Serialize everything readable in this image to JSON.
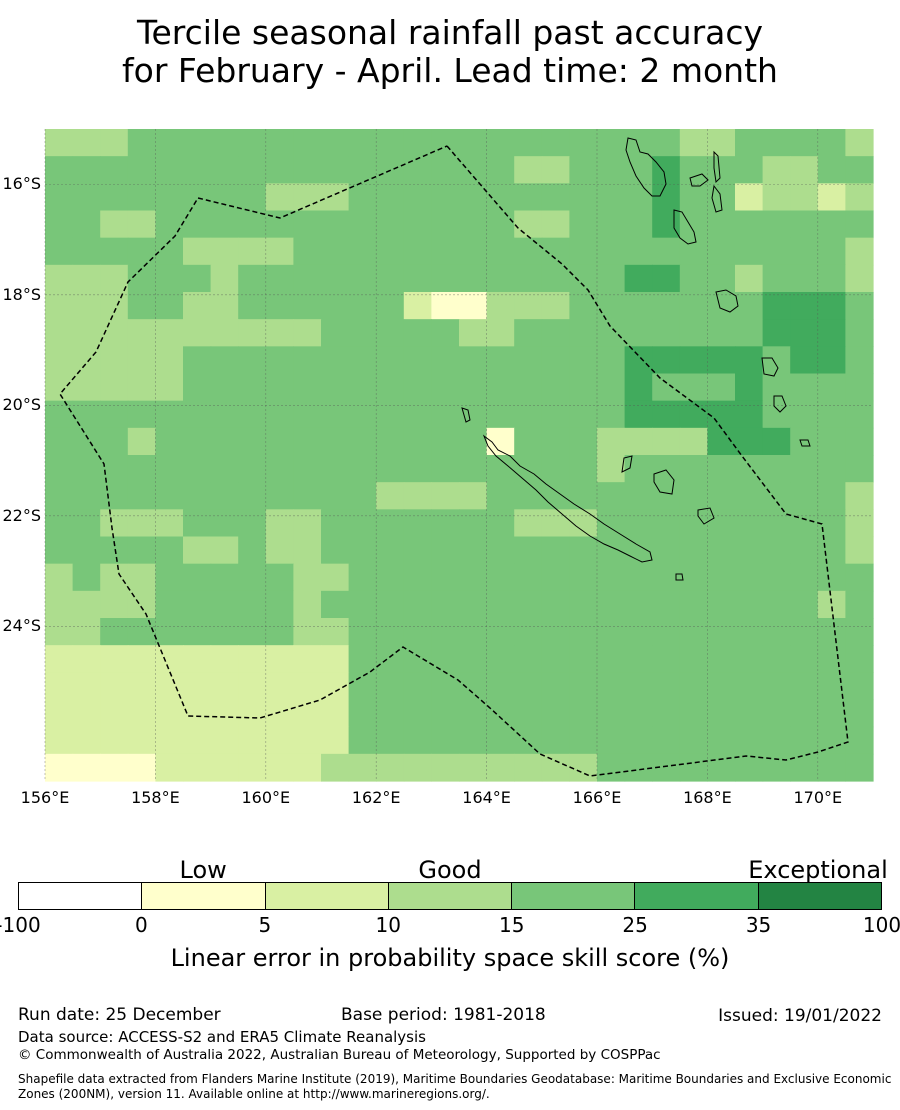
{
  "title": {
    "line1": "Tercile seasonal rainfall past accuracy",
    "line2": "for February - April. Lead time: 2 month"
  },
  "map": {
    "lon_range": [
      156,
      171
    ],
    "lat_range": [
      -26.8,
      -15.0
    ],
    "lat_ticks": [
      {
        "value": -16,
        "label": "16°S"
      },
      {
        "value": -18,
        "label": "18°S"
      },
      {
        "value": -20,
        "label": "20°S"
      },
      {
        "value": -22,
        "label": "22°S"
      },
      {
        "value": -24,
        "label": "24°S"
      }
    ],
    "lon_ticks": [
      {
        "value": 156,
        "label": "156°E"
      },
      {
        "value": 158,
        "label": "158°E"
      },
      {
        "value": 160,
        "label": "160°E"
      },
      {
        "value": 162,
        "label": "162°E"
      },
      {
        "value": 164,
        "label": "164°E"
      },
      {
        "value": 166,
        "label": "166°E"
      },
      {
        "value": 168,
        "label": "168°E"
      },
      {
        "value": 170,
        "label": "170°E"
      }
    ],
    "grid_rows": [
      "333444444444444444444443344443",
      "444444444444444443344454443344",
      "444444443334444444444454423323",
      "443344444444444443344454444444",
      "444443333444444444444444444443",
      "333444344444444444444554434443",
      "333443344444421133344444445554",
      "333333333344444334444444445554",
      "333334444444444444444555554554",
      "333334444444444444444544454444",
      "444444444444444444444555554444",
      "444344444444444414443333555444",
      "444444444444444444443444444444",
      "444444444444333344444444444443",
      "443334443344444443334444444443",
      "444443343344444444444444444443",
      "343344444334444444444444444444",
      "333344444344444444444444444434",
      "334444444334444444444444444444",
      "222222222224444444444444444444",
      "222222222224444444444444444444",
      "222222222224444444444444444444",
      "222222222224444444444444444444",
      "111122222233333333334444444444"
    ]
  },
  "colorbar": {
    "title": "Linear error in probability space skill score (%)",
    "categories": [
      {
        "label": "Low",
        "position": 1.5
      },
      {
        "label": "Good",
        "position": 3.5
      },
      {
        "label": "Exceptional",
        "position": 6.5
      }
    ],
    "bins": [
      {
        "range": [
          -100,
          0
        ],
        "color": "#ffffff"
      },
      {
        "range": [
          0,
          5
        ],
        "color": "#ffffcc"
      },
      {
        "range": [
          5,
          10
        ],
        "color": "#d9f0a3"
      },
      {
        "range": [
          10,
          15
        ],
        "color": "#addd8e"
      },
      {
        "range": [
          15,
          25
        ],
        "color": "#78c679"
      },
      {
        "range": [
          25,
          35
        ],
        "color": "#41ab5d"
      },
      {
        "range": [
          35,
          100
        ],
        "color": "#238443"
      }
    ],
    "tick_labels": [
      "-100",
      "0",
      "5",
      "10",
      "15",
      "25",
      "35",
      "100"
    ]
  },
  "footer": {
    "run_date": "Run date: 25 December",
    "base_period": "Base period: 1981-2018",
    "issued": "Issued: 19/01/2022",
    "data_source": "Data source: ACCESS-S2 and ERA5 Climate Reanalysis",
    "copyright": "© Commonwealth of Australia 2022, Australian Bureau of Meteorology, Supported by COSPPac",
    "shapefile": "Shapefile data extracted from Flanders Marine Institute (2019), Maritime Boundaries Geodatabase: Maritime Boundaries and Exclusive Economic Zones (200NM), version 11. Available online at http://www.marineregions.org/."
  }
}
